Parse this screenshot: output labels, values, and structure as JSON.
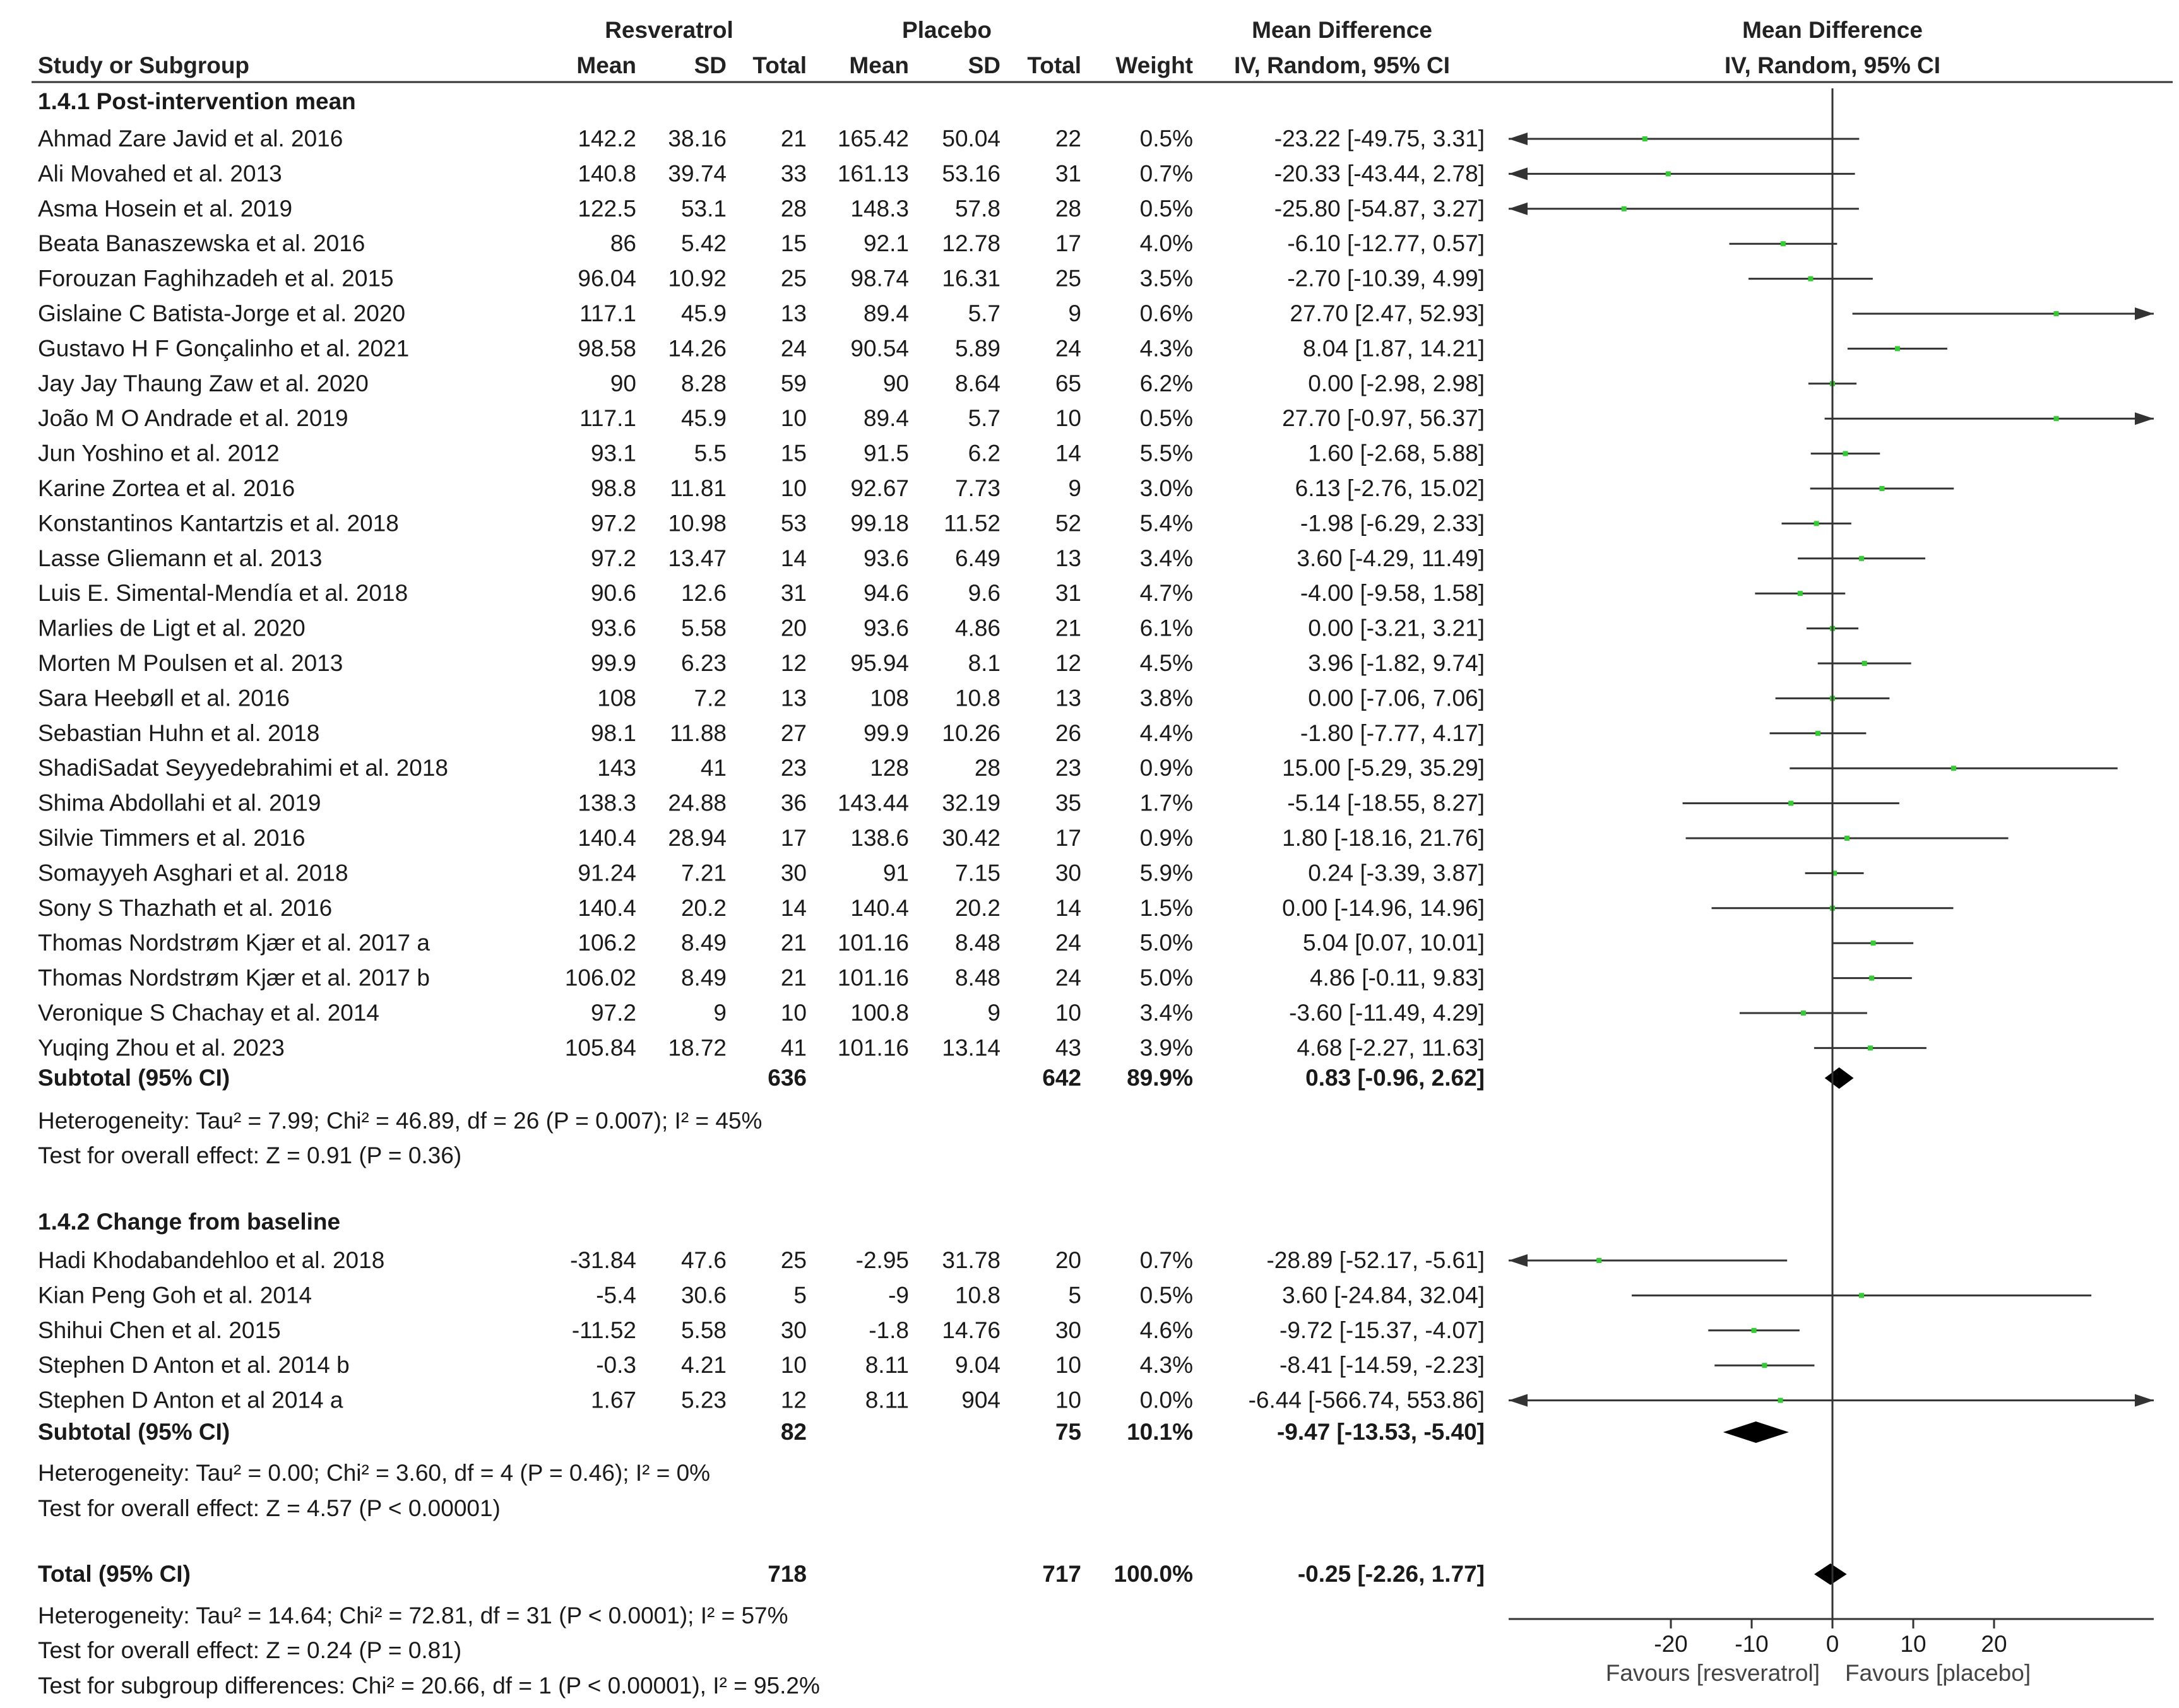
{
  "columns": {
    "group_resveratrol": "Resveratrol",
    "group_placebo": "Placebo",
    "md_header": "Mean Difference",
    "md_subheader": "IV, Random, 95% CI",
    "plot_header": "Mean Difference",
    "plot_subheader": "IV, Random, 95% CI",
    "study": "Study or Subgroup",
    "mean": "Mean",
    "sd": "SD",
    "total": "Total",
    "weight": "Weight"
  },
  "chart_data": {
    "type": "forest",
    "x_axis": {
      "ticks": [
        "-20",
        "-10",
        "0",
        "10",
        "20"
      ],
      "tick_values": [
        -20,
        -10,
        0,
        10,
        20
      ],
      "xlim": [
        -40,
        40
      ],
      "label_left": "Favours [resveratrol]",
      "label_right": "Favours [placebo]"
    },
    "subgroups": [
      {
        "title": "1.4.1 Post-intervention mean",
        "studies": [
          {
            "name": "Ahmad Zare Javid et al. 2016",
            "m1": "142.2",
            "sd1": "38.16",
            "n1": "21",
            "m2": "165.42",
            "sd2": "50.04",
            "n2": "22",
            "weight": "0.5%",
            "ci": "-23.22 [-49.75, 3.31]",
            "est": -23.22,
            "lo": -49.75,
            "hi": 3.31
          },
          {
            "name": "Ali Movahed et al. 2013",
            "m1": "140.8",
            "sd1": "39.74",
            "n1": "33",
            "m2": "161.13",
            "sd2": "53.16",
            "n2": "31",
            "weight": "0.7%",
            "ci": "-20.33 [-43.44, 2.78]",
            "est": -20.33,
            "lo": -43.44,
            "hi": 2.78
          },
          {
            "name": "Asma Hosein et al. 2019",
            "m1": "122.5",
            "sd1": "53.1",
            "n1": "28",
            "m2": "148.3",
            "sd2": "57.8",
            "n2": "28",
            "weight": "0.5%",
            "ci": "-25.80 [-54.87, 3.27]",
            "est": -25.8,
            "lo": -54.87,
            "hi": 3.27
          },
          {
            "name": "Beata Banaszewska et al. 2016",
            "m1": "86",
            "sd1": "5.42",
            "n1": "15",
            "m2": "92.1",
            "sd2": "12.78",
            "n2": "17",
            "weight": "4.0%",
            "ci": "-6.10 [-12.77, 0.57]",
            "est": -6.1,
            "lo": -12.77,
            "hi": 0.57
          },
          {
            "name": "Forouzan Faghihzadeh et al. 2015",
            "m1": "96.04",
            "sd1": "10.92",
            "n1": "25",
            "m2": "98.74",
            "sd2": "16.31",
            "n2": "25",
            "weight": "3.5%",
            "ci": "-2.70 [-10.39, 4.99]",
            "est": -2.7,
            "lo": -10.39,
            "hi": 4.99
          },
          {
            "name": "Gislaine C Batista-Jorge et al. 2020",
            "m1": "117.1",
            "sd1": "45.9",
            "n1": "13",
            "m2": "89.4",
            "sd2": "5.7",
            "n2": "9",
            "weight": "0.6%",
            "ci": "27.70 [2.47, 52.93]",
            "est": 27.7,
            "lo": 2.47,
            "hi": 52.93
          },
          {
            "name": "Gustavo H F Gonçalinho et al. 2021",
            "m1": "98.58",
            "sd1": "14.26",
            "n1": "24",
            "m2": "90.54",
            "sd2": "5.89",
            "n2": "24",
            "weight": "4.3%",
            "ci": "8.04 [1.87, 14.21]",
            "est": 8.04,
            "lo": 1.87,
            "hi": 14.21
          },
          {
            "name": "Jay Jay Thaung Zaw et al. 2020",
            "m1": "90",
            "sd1": "8.28",
            "n1": "59",
            "m2": "90",
            "sd2": "8.64",
            "n2": "65",
            "weight": "6.2%",
            "ci": "0.00 [-2.98, 2.98]",
            "est": 0.0,
            "lo": -2.98,
            "hi": 2.98
          },
          {
            "name": "João M O Andrade et al. 2019",
            "m1": "117.1",
            "sd1": "45.9",
            "n1": "10",
            "m2": "89.4",
            "sd2": "5.7",
            "n2": "10",
            "weight": "0.5%",
            "ci": "27.70 [-0.97, 56.37]",
            "est": 27.7,
            "lo": -0.97,
            "hi": 56.37
          },
          {
            "name": "Jun Yoshino et al. 2012",
            "m1": "93.1",
            "sd1": "5.5",
            "n1": "15",
            "m2": "91.5",
            "sd2": "6.2",
            "n2": "14",
            "weight": "5.5%",
            "ci": "1.60 [-2.68, 5.88]",
            "est": 1.6,
            "lo": -2.68,
            "hi": 5.88
          },
          {
            "name": "Karine Zortea et al. 2016",
            "m1": "98.8",
            "sd1": "11.81",
            "n1": "10",
            "m2": "92.67",
            "sd2": "7.73",
            "n2": "9",
            "weight": "3.0%",
            "ci": "6.13 [-2.76, 15.02]",
            "est": 6.13,
            "lo": -2.76,
            "hi": 15.02
          },
          {
            "name": "Konstantinos Kantartzis et al. 2018",
            "m1": "97.2",
            "sd1": "10.98",
            "n1": "53",
            "m2": "99.18",
            "sd2": "11.52",
            "n2": "52",
            "weight": "5.4%",
            "ci": "-1.98 [-6.29, 2.33]",
            "est": -1.98,
            "lo": -6.29,
            "hi": 2.33
          },
          {
            "name": "Lasse Gliemann et al. 2013",
            "m1": "97.2",
            "sd1": "13.47",
            "n1": "14",
            "m2": "93.6",
            "sd2": "6.49",
            "n2": "13",
            "weight": "3.4%",
            "ci": "3.60 [-4.29, 11.49]",
            "est": 3.6,
            "lo": -4.29,
            "hi": 11.49
          },
          {
            "name": "Luis E. Simental-Mendía et al. 2018",
            "m1": "90.6",
            "sd1": "12.6",
            "n1": "31",
            "m2": "94.6",
            "sd2": "9.6",
            "n2": "31",
            "weight": "4.7%",
            "ci": "-4.00 [-9.58, 1.58]",
            "est": -4.0,
            "lo": -9.58,
            "hi": 1.58
          },
          {
            "name": "Marlies de Ligt et al. 2020",
            "m1": "93.6",
            "sd1": "5.58",
            "n1": "20",
            "m2": "93.6",
            "sd2": "4.86",
            "n2": "21",
            "weight": "6.1%",
            "ci": "0.00 [-3.21, 3.21]",
            "est": 0.0,
            "lo": -3.21,
            "hi": 3.21
          },
          {
            "name": "Morten M Poulsen et al. 2013",
            "m1": "99.9",
            "sd1": "6.23",
            "n1": "12",
            "m2": "95.94",
            "sd2": "8.1",
            "n2": "12",
            "weight": "4.5%",
            "ci": "3.96 [-1.82, 9.74]",
            "est": 3.96,
            "lo": -1.82,
            "hi": 9.74
          },
          {
            "name": "Sara Heebøll et al. 2016",
            "m1": "108",
            "sd1": "7.2",
            "n1": "13",
            "m2": "108",
            "sd2": "10.8",
            "n2": "13",
            "weight": "3.8%",
            "ci": "0.00 [-7.06, 7.06]",
            "est": 0.0,
            "lo": -7.06,
            "hi": 7.06
          },
          {
            "name": "Sebastian Huhn et al. 2018",
            "m1": "98.1",
            "sd1": "11.88",
            "n1": "27",
            "m2": "99.9",
            "sd2": "10.26",
            "n2": "26",
            "weight": "4.4%",
            "ci": "-1.80 [-7.77, 4.17]",
            "est": -1.8,
            "lo": -7.77,
            "hi": 4.17
          },
          {
            "name": "ShadiSadat Seyyedebrahimi et al. 2018",
            "m1": "143",
            "sd1": "41",
            "n1": "23",
            "m2": "128",
            "sd2": "28",
            "n2": "23",
            "weight": "0.9%",
            "ci": "15.00 [-5.29, 35.29]",
            "est": 15.0,
            "lo": -5.29,
            "hi": 35.29
          },
          {
            "name": "Shima Abdollahi et al. 2019",
            "m1": "138.3",
            "sd1": "24.88",
            "n1": "36",
            "m2": "143.44",
            "sd2": "32.19",
            "n2": "35",
            "weight": "1.7%",
            "ci": "-5.14 [-18.55, 8.27]",
            "est": -5.14,
            "lo": -18.55,
            "hi": 8.27
          },
          {
            "name": "Silvie Timmers et al. 2016",
            "m1": "140.4",
            "sd1": "28.94",
            "n1": "17",
            "m2": "138.6",
            "sd2": "30.42",
            "n2": "17",
            "weight": "0.9%",
            "ci": "1.80 [-18.16, 21.76]",
            "est": 1.8,
            "lo": -18.16,
            "hi": 21.76
          },
          {
            "name": "Somayyeh Asghari et al. 2018",
            "m1": "91.24",
            "sd1": "7.21",
            "n1": "30",
            "m2": "91",
            "sd2": "7.15",
            "n2": "30",
            "weight": "5.9%",
            "ci": "0.24 [-3.39, 3.87]",
            "est": 0.24,
            "lo": -3.39,
            "hi": 3.87
          },
          {
            "name": "Sony S Thazhath et al. 2016",
            "m1": "140.4",
            "sd1": "20.2",
            "n1": "14",
            "m2": "140.4",
            "sd2": "20.2",
            "n2": "14",
            "weight": "1.5%",
            "ci": "0.00 [-14.96, 14.96]",
            "est": 0.0,
            "lo": -14.96,
            "hi": 14.96
          },
          {
            "name": "Thomas Nordstrøm Kjær et al. 2017 a",
            "m1": "106.2",
            "sd1": "8.49",
            "n1": "21",
            "m2": "101.16",
            "sd2": "8.48",
            "n2": "24",
            "weight": "5.0%",
            "ci": "5.04 [0.07, 10.01]",
            "est": 5.04,
            "lo": 0.07,
            "hi": 10.01
          },
          {
            "name": "Thomas Nordstrøm Kjær et al. 2017 b",
            "m1": "106.02",
            "sd1": "8.49",
            "n1": "21",
            "m2": "101.16",
            "sd2": "8.48",
            "n2": "24",
            "weight": "5.0%",
            "ci": "4.86 [-0.11, 9.83]",
            "est": 4.86,
            "lo": -0.11,
            "hi": 9.83
          },
          {
            "name": "Veronique S Chachay et al. 2014",
            "m1": "97.2",
            "sd1": "9",
            "n1": "10",
            "m2": "100.8",
            "sd2": "9",
            "n2": "10",
            "weight": "3.4%",
            "ci": "-3.60 [-11.49, 4.29]",
            "est": -3.6,
            "lo": -11.49,
            "hi": 4.29
          },
          {
            "name": "Yuqing Zhou et al. 2023",
            "m1": "105.84",
            "sd1": "18.72",
            "n1": "41",
            "m2": "101.16",
            "sd2": "13.14",
            "n2": "43",
            "weight": "3.9%",
            "ci": "4.68 [-2.27, 11.63]",
            "est": 4.68,
            "lo": -2.27,
            "hi": 11.63
          }
        ],
        "subtotal": {
          "label": "Subtotal (95% CI)",
          "n1": "636",
          "n2": "642",
          "weight": "89.9%",
          "ci": "0.83 [-0.96, 2.62]",
          "est": 0.83,
          "lo": -0.96,
          "hi": 2.62
        },
        "heterogeneity": "Heterogeneity: Tau² = 7.99; Chi² = 46.89, df = 26 (P = 0.007); I² = 45%",
        "overall": "Test for overall effect: Z = 0.91 (P = 0.36)"
      },
      {
        "title": "1.4.2 Change from baseline",
        "studies": [
          {
            "name": "Hadi Khodabandehloo et al. 2018",
            "m1": "-31.84",
            "sd1": "47.6",
            "n1": "25",
            "m2": "-2.95",
            "sd2": "31.78",
            "n2": "20",
            "weight": "0.7%",
            "ci": "-28.89 [-52.17, -5.61]",
            "est": -28.89,
            "lo": -52.17,
            "hi": -5.61
          },
          {
            "name": "Kian Peng Goh et al. 2014",
            "m1": "-5.4",
            "sd1": "30.6",
            "n1": "5",
            "m2": "-9",
            "sd2": "10.8",
            "n2": "5",
            "weight": "0.5%",
            "ci": "3.60 [-24.84, 32.04]",
            "est": 3.6,
            "lo": -24.84,
            "hi": 32.04
          },
          {
            "name": "Shihui Chen et al. 2015",
            "m1": "-11.52",
            "sd1": "5.58",
            "n1": "30",
            "m2": "-1.8",
            "sd2": "14.76",
            "n2": "30",
            "weight": "4.6%",
            "ci": "-9.72 [-15.37, -4.07]",
            "est": -9.72,
            "lo": -15.37,
            "hi": -4.07
          },
          {
            "name": "Stephen D Anton et al. 2014 b",
            "m1": "-0.3",
            "sd1": "4.21",
            "n1": "10",
            "m2": "8.11",
            "sd2": "9.04",
            "n2": "10",
            "weight": "4.3%",
            "ci": "-8.41 [-14.59, -2.23]",
            "est": -8.41,
            "lo": -14.59,
            "hi": -2.23
          },
          {
            "name": "Stephen D Anton et al 2014 a",
            "m1": "1.67",
            "sd1": "5.23",
            "n1": "12",
            "m2": "8.11",
            "sd2": "904",
            "n2": "10",
            "weight": "0.0%",
            "ci": "-6.44 [-566.74, 553.86]",
            "est": -6.44,
            "lo": -566.74,
            "hi": 553.86
          }
        ],
        "subtotal": {
          "label": "Subtotal (95% CI)",
          "n1": "82",
          "n2": "75",
          "weight": "10.1%",
          "ci": "-9.47 [-13.53, -5.40]",
          "est": -9.47,
          "lo": -13.53,
          "hi": -5.4
        },
        "heterogeneity": "Heterogeneity: Tau² = 0.00; Chi² = 3.60, df = 4 (P = 0.46); I² = 0%",
        "overall": "Test for overall effect: Z = 4.57 (P < 0.00001)"
      }
    ],
    "total": {
      "label": "Total (95% CI)",
      "n1": "718",
      "n2": "717",
      "weight": "100.0%",
      "ci": "-0.25 [-2.26, 1.77]",
      "est": -0.25,
      "lo": -2.26,
      "hi": 1.77
    },
    "footer": [
      "Heterogeneity: Tau² = 14.64; Chi² = 72.81, df = 31 (P < 0.0001); I² = 57%",
      "Test for overall effect: Z = 0.24 (P = 0.81)",
      "Test for subgroup differences: Chi² = 20.66, df = 1 (P < 0.00001), I² = 95.2%"
    ]
  },
  "colors": {
    "text": "#1a1a1a",
    "point": "#33cc33",
    "line": "#333333",
    "diamond": "#000000",
    "header_text": "#222222"
  }
}
